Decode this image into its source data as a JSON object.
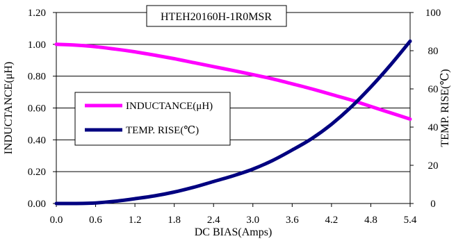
{
  "chart_data": {
    "type": "line",
    "title": "HTEH20160H-1R0MSR",
    "xlabel": "DC BIAS(Amps)",
    "ylabel": "INDUCTANCE(μH)",
    "y2label": "TEMP. RISE(℃)",
    "xlim": [
      0,
      5.4
    ],
    "ylim": [
      0,
      1.2
    ],
    "y2lim": [
      0,
      100
    ],
    "x_ticks": [
      "0.0",
      "0.6",
      "1.2",
      "1.8",
      "2.4",
      "3.0",
      "3.6",
      "4.2",
      "4.8",
      "5.4"
    ],
    "y_ticks": [
      "0.00",
      "0.20",
      "0.40",
      "0.60",
      "0.80",
      "1.00",
      "1.20"
    ],
    "y2_ticks": [
      "0",
      "20",
      "40",
      "60",
      "80",
      "100"
    ],
    "grid": true,
    "legend_placement": "left-middle",
    "series": [
      {
        "name": "INDUCTANCE(μH)",
        "axis": "left",
        "color": "#ff00ff",
        "x": [
          0,
          0.3,
          0.6,
          0.9,
          1.2,
          1.5,
          1.8,
          2.1,
          2.4,
          2.7,
          3.0,
          3.3,
          3.6,
          3.9,
          4.2,
          4.5,
          4.8,
          5.1,
          5.4
        ],
        "values": [
          1.0,
          0.995,
          0.985,
          0.97,
          0.953,
          0.932,
          0.91,
          0.885,
          0.86,
          0.835,
          0.81,
          0.783,
          0.752,
          0.72,
          0.685,
          0.65,
          0.61,
          0.57,
          0.53
        ]
      },
      {
        "name": "TEMP. RISE(℃)",
        "axis": "right",
        "color": "#000080",
        "x": [
          0,
          0.3,
          0.6,
          0.9,
          1.2,
          1.5,
          1.8,
          2.1,
          2.4,
          2.7,
          3.0,
          3.3,
          3.6,
          3.9,
          4.2,
          4.5,
          4.8,
          5.1,
          5.4
        ],
        "values": [
          0,
          0,
          0.3,
          1.2,
          2.5,
          4,
          6,
          8.5,
          11.5,
          14.5,
          18,
          22.5,
          28,
          34,
          41.5,
          50.5,
          61,
          72.5,
          85
        ]
      }
    ]
  }
}
